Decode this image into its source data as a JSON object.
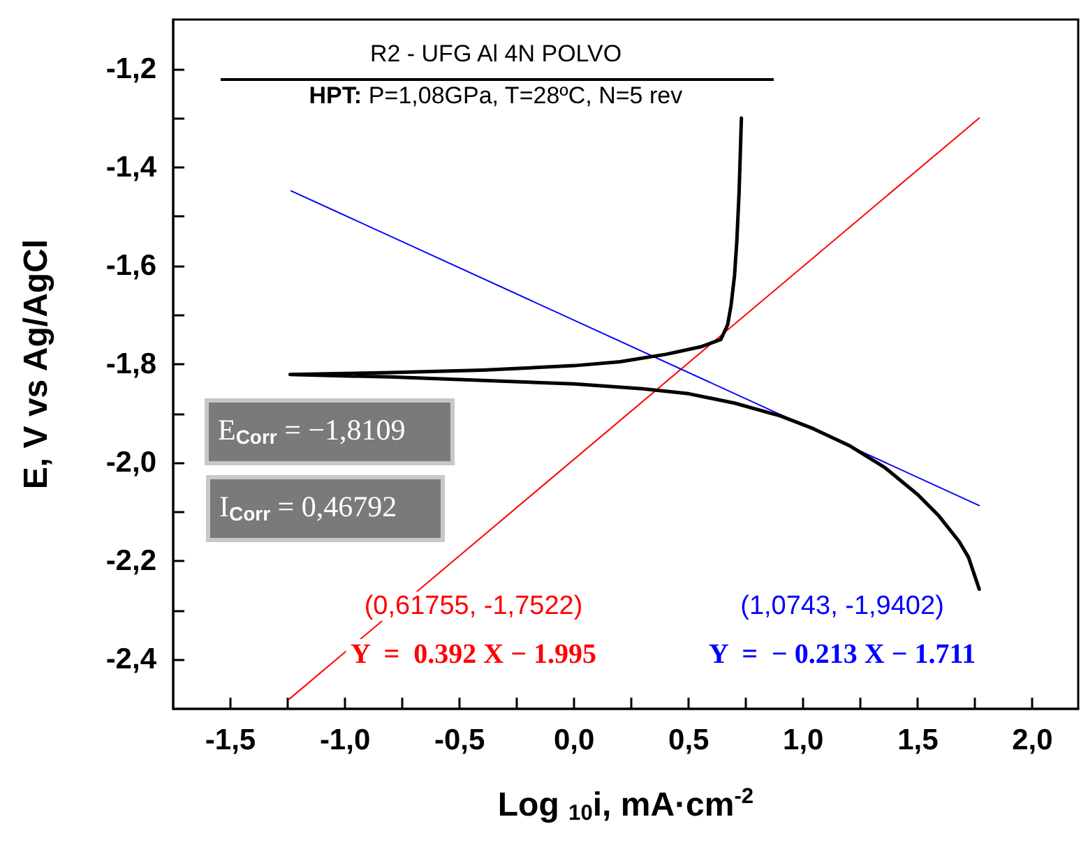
{
  "chart_data": {
    "type": "line",
    "title": "R2 - UFG Al 4N POLVO",
    "subtitle": "HPT: P=1,08GPa, T=28ºC, N=5 rev",
    "xlabel": "Log $_{10}$i, mA·cm$^{-2}$",
    "ylabel": "E, V vs Ag/AgCl",
    "xlim": [
      -1.75,
      2.2
    ],
    "ylim": [
      -2.5,
      -1.1
    ],
    "xticks": [
      {
        "value": -1.5,
        "label": "-1,5"
      },
      {
        "value": -1.25,
        "label": null
      },
      {
        "value": -1.0,
        "label": "-1,0"
      },
      {
        "value": -0.75,
        "label": null
      },
      {
        "value": -0.5,
        "label": "-0,5"
      },
      {
        "value": -0.25,
        "label": null
      },
      {
        "value": 0,
        "label": "0,0"
      },
      {
        "value": 0.25,
        "label": null
      },
      {
        "value": 0.5,
        "label": "0,5"
      },
      {
        "value": 0.75,
        "label": null
      },
      {
        "value": 1.0,
        "label": "1,0"
      },
      {
        "value": 1.25,
        "label": null
      },
      {
        "value": 1.5,
        "label": "1,5"
      },
      {
        "value": 1.75,
        "label": null
      },
      {
        "value": 2.0,
        "label": "2,0"
      }
    ],
    "yticks": [
      {
        "value": -2.4,
        "label": "-2,4"
      },
      {
        "value": -2.3,
        "label": null
      },
      {
        "value": -2.2,
        "label": "-2,2"
      },
      {
        "value": -2.1,
        "label": null
      },
      {
        "value": -2.0,
        "label": "-2,0"
      },
      {
        "value": -1.9,
        "label": null
      },
      {
        "value": -1.8,
        "label": "-1,8"
      },
      {
        "value": -1.7,
        "label": null
      },
      {
        "value": -1.6,
        "label": "-1,6"
      },
      {
        "value": -1.5,
        "label": null
      },
      {
        "value": -1.4,
        "label": "-1,4"
      },
      {
        "value": -1.3,
        "label": null
      },
      {
        "value": -1.2,
        "label": "-1,2"
      }
    ],
    "grid": false,
    "legend": false,
    "line_style": "solid",
    "series": [
      {
        "color": "#000000",
        "x": [
          0.73,
          0.72,
          0.71,
          0.7,
          0.685,
          0.67,
          0.64,
          0.55,
          0.4,
          0.2,
          0,
          -0.4,
          -0.8,
          -1.24,
          -0.8,
          -0.4,
          0,
          0.3,
          0.5,
          0.7,
          0.9,
          1.044,
          1.2,
          1.356,
          1.5,
          1.59,
          1.68,
          1.721,
          1.768
        ],
        "values": [
          -1.3,
          -1.45,
          -1.55,
          -1.62,
          -1.68,
          -1.72,
          -1.75,
          -1.765,
          -1.78,
          -1.795,
          -1.803,
          -1.812,
          -1.817,
          -1.821,
          -1.826,
          -1.833,
          -1.84,
          -1.85,
          -1.86,
          -1.879,
          -1.905,
          -1.931,
          -1.965,
          -2.01,
          -2.065,
          -2.107,
          -2.16,
          -2.192,
          -2.257
        ]
      },
      {
        "name": "Y  =  0.392 X − 1.995",
        "color": "#ff0000",
        "x": [
          -1.243,
          1.768
        ],
        "values": [
          -2.48,
          -1.3
        ]
      },
      {
        "name": "Y  =  − 0.213 X − 1.711",
        "color": "#0000ff",
        "x": [
          -1.235,
          1.768
        ],
        "values": [
          -1.448,
          -2.087
        ]
      }
    ],
    "annotations": [
      "E$_{Corr}$ = −1,8109",
      "I$_{Corr}$ = 0,46792",
      "(0,61755, -1,7522)",
      "(1,0743, -1,9402)"
    ]
  }
}
